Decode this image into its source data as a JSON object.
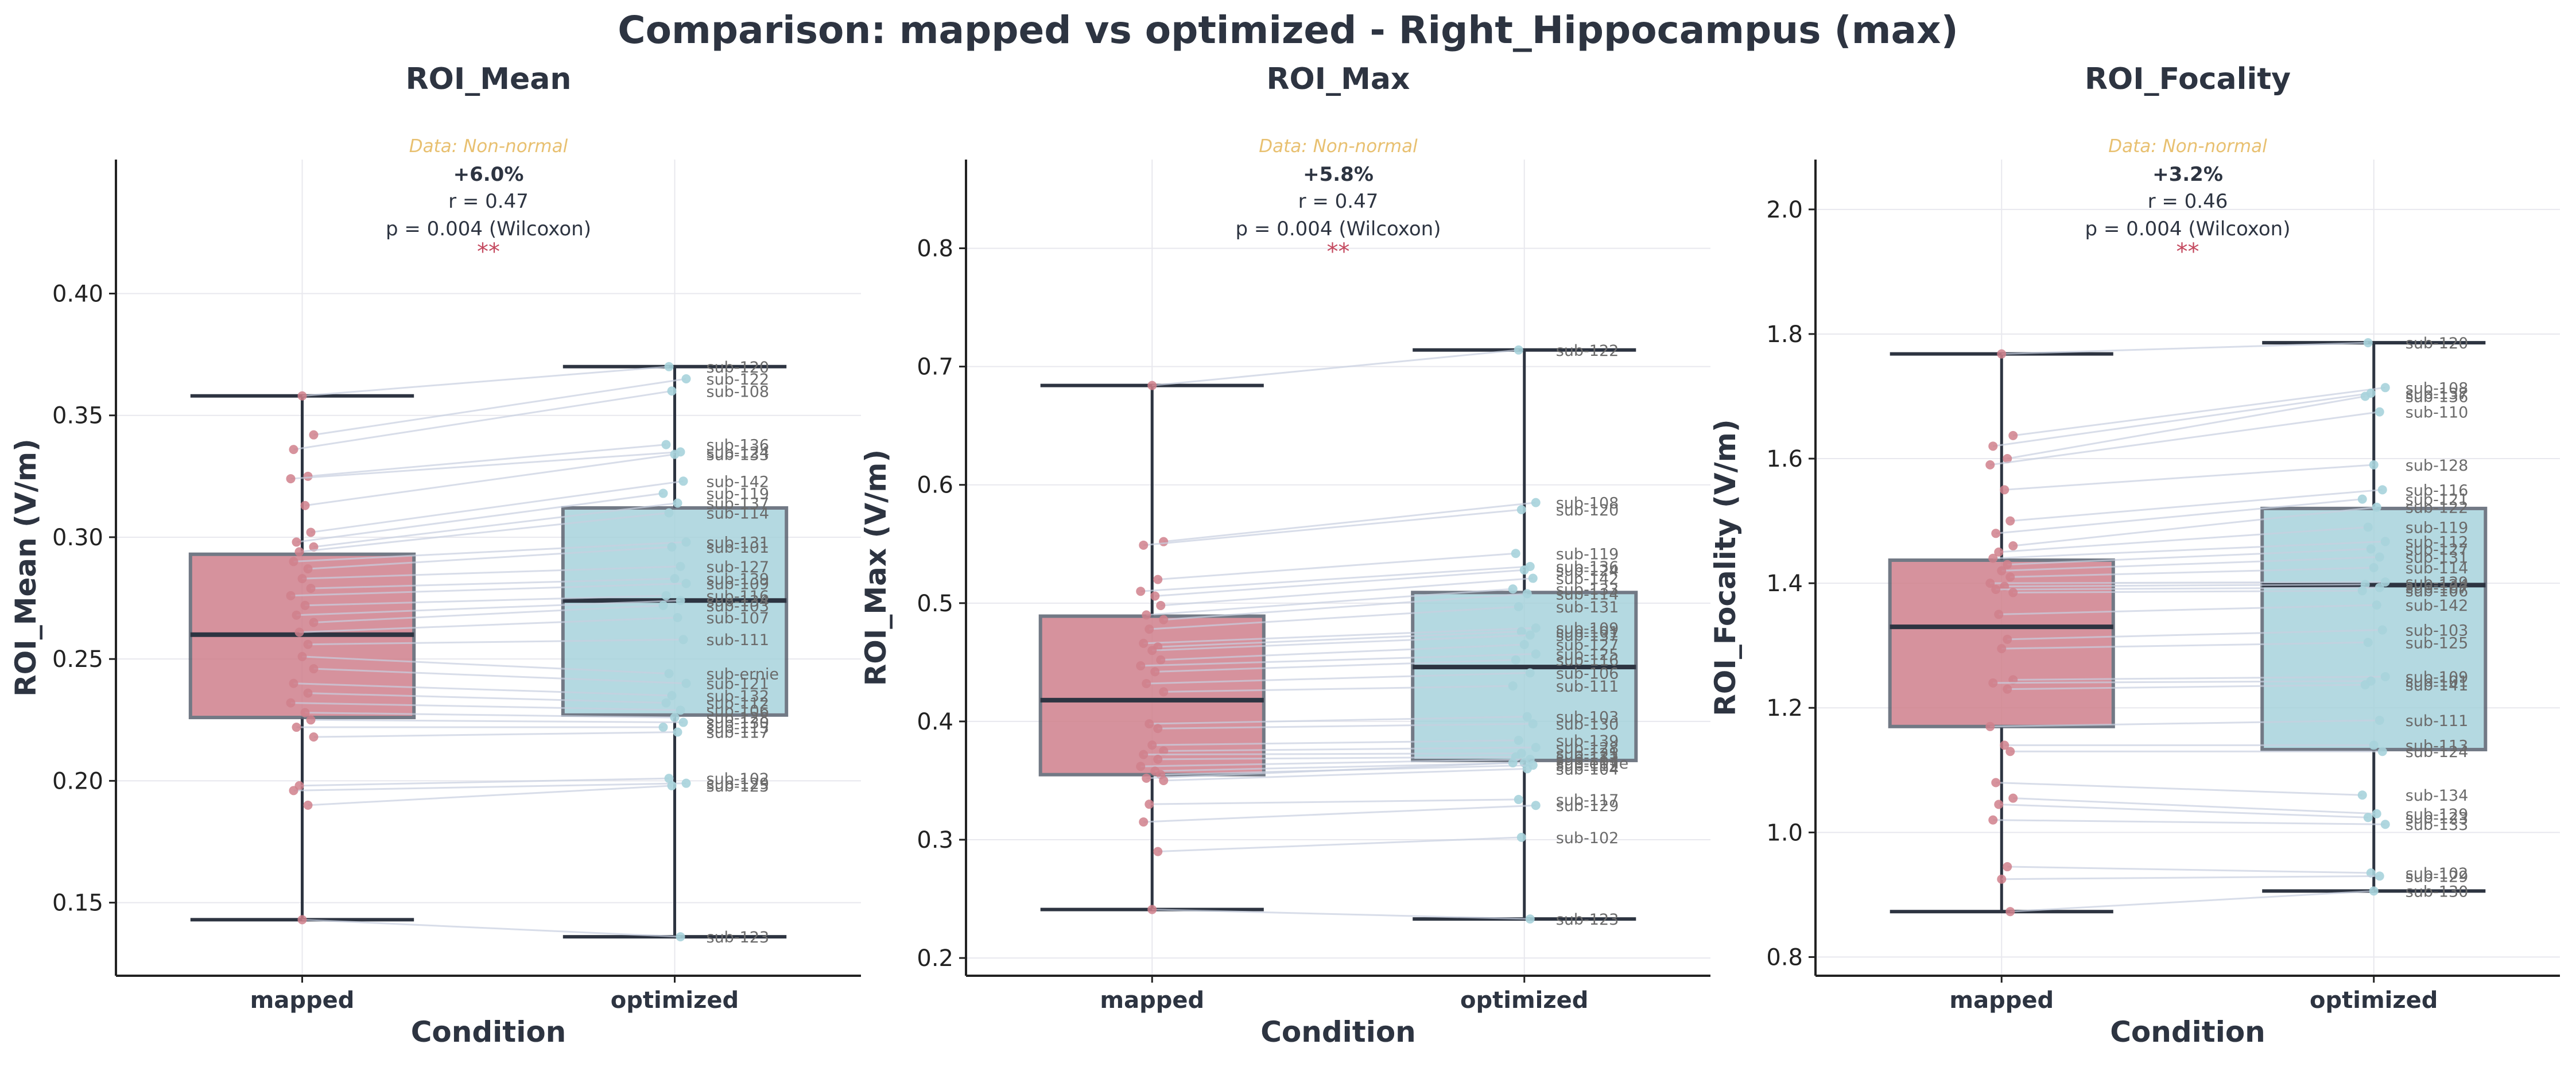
{
  "figure": {
    "title": "Comparison: mapped vs optimized - Right_Hippocampus (max)",
    "colors": {
      "mapped": "#d0808c",
      "optimized": "#a7d3dc",
      "median": "#2d3441",
      "text": "#2d3441",
      "note": "#e8c070",
      "stars": "#c4495f",
      "lines": "#c8d0e0"
    }
  },
  "chart_data": [
    {
      "type": "box",
      "title": "ROI_Mean",
      "xlabel": "Condition",
      "ylabel": "ROI_Mean (V/m)",
      "categories": [
        "mapped",
        "optimized"
      ],
      "ylim": [
        0.12,
        0.455
      ],
      "yticks": [
        0.15,
        0.2,
        0.25,
        0.3,
        0.35,
        0.4
      ],
      "ytick_labels": [
        "0.15",
        "0.20",
        "0.25",
        "0.30",
        "0.35",
        "0.40"
      ],
      "grid": true,
      "annotation": {
        "note": "Data: Non-normal",
        "pct": "+6.0%",
        "r": "r = 0.47",
        "p": "p = 0.004 (Wilcoxon)",
        "stars": "**"
      },
      "boxes": [
        {
          "condition": "mapped",
          "whisker_low": 0.143,
          "q1": 0.226,
          "median": 0.26,
          "q3": 0.293,
          "whisker_high": 0.358
        },
        {
          "condition": "optimized",
          "whisker_low": 0.136,
          "q1": 0.227,
          "median": 0.274,
          "q3": 0.312,
          "whisker_high": 0.37
        }
      ],
      "subjects": [
        {
          "label": "sub-120",
          "mapped": 0.358,
          "optimized": 0.37
        },
        {
          "label": "sub-122",
          "mapped": 0.342,
          "optimized": 0.365
        },
        {
          "label": "sub-108",
          "mapped": 0.336,
          "optimized": 0.36
        },
        {
          "label": "sub-136",
          "mapped": 0.325,
          "optimized": 0.338
        },
        {
          "label": "sub-124",
          "mapped": 0.324,
          "optimized": 0.335
        },
        {
          "label": "sub-133",
          "mapped": 0.313,
          "optimized": 0.334
        },
        {
          "label": "sub-142",
          "mapped": 0.302,
          "optimized": 0.323
        },
        {
          "label": "sub-119",
          "mapped": 0.298,
          "optimized": 0.318
        },
        {
          "label": "sub-137",
          "mapped": 0.296,
          "optimized": 0.314
        },
        {
          "label": "sub-114",
          "mapped": 0.294,
          "optimized": 0.31
        },
        {
          "label": "sub-131",
          "mapped": 0.29,
          "optimized": 0.298
        },
        {
          "label": "sub-101",
          "mapped": 0.287,
          "optimized": 0.296
        },
        {
          "label": "sub-127",
          "mapped": 0.283,
          "optimized": 0.288
        },
        {
          "label": "sub-139",
          "mapped": 0.279,
          "optimized": 0.283
        },
        {
          "label": "sub-109",
          "mapped": 0.276,
          "optimized": 0.281
        },
        {
          "label": "sub-116",
          "mapped": 0.272,
          "optimized": 0.276
        },
        {
          "label": "sub-134",
          "mapped": 0.268,
          "optimized": 0.274
        },
        {
          "label": "sub-103",
          "mapped": 0.265,
          "optimized": 0.272
        },
        {
          "label": "sub-107",
          "mapped": 0.261,
          "optimized": 0.267
        },
        {
          "label": "sub-111",
          "mapped": 0.256,
          "optimized": 0.258
        },
        {
          "label": "sub-ernie",
          "mapped": 0.251,
          "optimized": 0.244
        },
        {
          "label": "sub-121",
          "mapped": 0.246,
          "optimized": 0.24
        },
        {
          "label": "sub-132",
          "mapped": 0.24,
          "optimized": 0.235
        },
        {
          "label": "sub-112",
          "mapped": 0.236,
          "optimized": 0.232
        },
        {
          "label": "sub-106",
          "mapped": 0.232,
          "optimized": 0.229
        },
        {
          "label": "sub-128",
          "mapped": 0.228,
          "optimized": 0.226
        },
        {
          "label": "sub-130",
          "mapped": 0.225,
          "optimized": 0.224
        },
        {
          "label": "sub-113",
          "mapped": 0.222,
          "optimized": 0.222
        },
        {
          "label": "sub-117",
          "mapped": 0.218,
          "optimized": 0.22
        },
        {
          "label": "sub-102",
          "mapped": 0.198,
          "optimized": 0.201
        },
        {
          "label": "sub-129",
          "mapped": 0.196,
          "optimized": 0.199
        },
        {
          "label": "sub-125",
          "mapped": 0.19,
          "optimized": 0.198
        },
        {
          "label": "sub-123",
          "mapped": 0.143,
          "optimized": 0.136
        }
      ]
    },
    {
      "type": "box",
      "title": "ROI_Max",
      "xlabel": "Condition",
      "ylabel": "ROI_Max (V/m)",
      "categories": [
        "mapped",
        "optimized"
      ],
      "ylim": [
        0.185,
        0.875
      ],
      "yticks": [
        0.2,
        0.3,
        0.4,
        0.5,
        0.6,
        0.7,
        0.8
      ],
      "ytick_labels": [
        "0.2",
        "0.3",
        "0.4",
        "0.5",
        "0.6",
        "0.7",
        "0.8"
      ],
      "grid": true,
      "annotation": {
        "note": "Data: Non-normal",
        "pct": "+5.8%",
        "r": "r = 0.47",
        "p": "p = 0.004 (Wilcoxon)",
        "stars": "**"
      },
      "boxes": [
        {
          "condition": "mapped",
          "whisker_low": 0.241,
          "q1": 0.355,
          "median": 0.418,
          "q3": 0.489,
          "whisker_high": 0.684
        },
        {
          "condition": "optimized",
          "whisker_low": 0.233,
          "q1": 0.367,
          "median": 0.446,
          "q3": 0.509,
          "whisker_high": 0.714
        }
      ],
      "subjects": [
        {
          "label": "sub-122",
          "mapped": 0.684,
          "optimized": 0.714
        },
        {
          "label": "sub-108",
          "mapped": 0.552,
          "optimized": 0.585
        },
        {
          "label": "sub-120",
          "mapped": 0.549,
          "optimized": 0.579
        },
        {
          "label": "sub-119",
          "mapped": 0.52,
          "optimized": 0.542
        },
        {
          "label": "sub-136",
          "mapped": 0.51,
          "optimized": 0.531
        },
        {
          "label": "sub-124",
          "mapped": 0.506,
          "optimized": 0.528
        },
        {
          "label": "sub-142",
          "mapped": 0.498,
          "optimized": 0.521
        },
        {
          "label": "sub-133",
          "mapped": 0.49,
          "optimized": 0.512
        },
        {
          "label": "sub-114",
          "mapped": 0.486,
          "optimized": 0.508
        },
        {
          "label": "sub-131",
          "mapped": 0.478,
          "optimized": 0.497
        },
        {
          "label": "sub-109",
          "mapped": 0.466,
          "optimized": 0.479
        },
        {
          "label": "sub-101",
          "mapped": 0.463,
          "optimized": 0.476
        },
        {
          "label": "sub-137",
          "mapped": 0.46,
          "optimized": 0.473
        },
        {
          "label": "sub-127",
          "mapped": 0.452,
          "optimized": 0.465
        },
        {
          "label": "sub-125",
          "mapped": 0.447,
          "optimized": 0.457
        },
        {
          "label": "sub-116",
          "mapped": 0.442,
          "optimized": 0.452
        },
        {
          "label": "sub-106",
          "mapped": 0.432,
          "optimized": 0.441
        },
        {
          "label": "sub-111",
          "mapped": 0.425,
          "optimized": 0.43
        },
        {
          "label": "sub-103",
          "mapped": 0.398,
          "optimized": 0.404
        },
        {
          "label": "sub-130",
          "mapped": 0.394,
          "optimized": 0.398
        },
        {
          "label": "sub-139",
          "mapped": 0.38,
          "optimized": 0.384
        },
        {
          "label": "sub-128",
          "mapped": 0.375,
          "optimized": 0.378
        },
        {
          "label": "sub-121",
          "mapped": 0.372,
          "optimized": 0.373
        },
        {
          "label": "sub-132",
          "mapped": 0.368,
          "optimized": 0.37
        },
        {
          "label": "sub-113",
          "mapped": 0.362,
          "optimized": 0.368
        },
        {
          "label": "sub-107",
          "mapped": 0.358,
          "optimized": 0.365
        },
        {
          "label": "sub-112",
          "mapped": 0.355,
          "optimized": 0.363
        },
        {
          "label": "sub-ernie",
          "mapped": 0.352,
          "optimized": 0.365
        },
        {
          "label": "sub-104",
          "mapped": 0.35,
          "optimized": 0.36
        },
        {
          "label": "sub-117",
          "mapped": 0.33,
          "optimized": 0.334
        },
        {
          "label": "sub-129",
          "mapped": 0.315,
          "optimized": 0.329
        },
        {
          "label": "sub-102",
          "mapped": 0.29,
          "optimized": 0.302
        },
        {
          "label": "sub-123",
          "mapped": 0.241,
          "optimized": 0.233
        }
      ]
    },
    {
      "type": "box",
      "title": "ROI_Focality",
      "xlabel": "Condition",
      "ylabel": "ROI_Focality (V/m)",
      "categories": [
        "mapped",
        "optimized"
      ],
      "ylim": [
        0.77,
        2.08
      ],
      "yticks": [
        0.8,
        1.0,
        1.2,
        1.4,
        1.6,
        1.8,
        2.0
      ],
      "ytick_labels": [
        "0.8",
        "1.0",
        "1.2",
        "1.4",
        "1.6",
        "1.8",
        "2.0"
      ],
      "grid": true,
      "annotation": {
        "note": "Data: Non-normal",
        "pct": "+3.2%",
        "r": "r = 0.46",
        "p": "p = 0.004 (Wilcoxon)",
        "stars": "**"
      },
      "boxes": [
        {
          "condition": "mapped",
          "whisker_low": 0.873,
          "q1": 1.17,
          "median": 1.33,
          "q3": 1.437,
          "whisker_high": 1.768
        },
        {
          "condition": "optimized",
          "whisker_low": 0.906,
          "q1": 1.133,
          "median": 1.397,
          "q3": 1.52,
          "whisker_high": 1.786
        }
      ],
      "subjects": [
        {
          "label": "sub-120",
          "mapped": 1.768,
          "optimized": 1.786
        },
        {
          "label": "sub-108",
          "mapped": 1.637,
          "optimized": 1.714
        },
        {
          "label": "sub-137",
          "mapped": 1.62,
          "optimized": 1.705
        },
        {
          "label": "sub-136",
          "mapped": 1.6,
          "optimized": 1.7
        },
        {
          "label": "sub-110",
          "mapped": 1.59,
          "optimized": 1.675
        },
        {
          "label": "sub-128",
          "mapped": 1.55,
          "optimized": 1.59
        },
        {
          "label": "sub-116",
          "mapped": 1.5,
          "optimized": 1.55
        },
        {
          "label": "sub-121",
          "mapped": 1.48,
          "optimized": 1.535
        },
        {
          "label": "sub-122",
          "mapped": 1.46,
          "optimized": 1.522
        },
        {
          "label": "sub-119",
          "mapped": 1.45,
          "optimized": 1.49
        },
        {
          "label": "sub-112",
          "mapped": 1.44,
          "optimized": 1.467
        },
        {
          "label": "sub-127",
          "mapped": 1.43,
          "optimized": 1.455
        },
        {
          "label": "sub-131",
          "mapped": 1.42,
          "optimized": 1.442
        },
        {
          "label": "sub-114",
          "mapped": 1.41,
          "optimized": 1.425
        },
        {
          "label": "sub-139",
          "mapped": 1.4,
          "optimized": 1.402
        },
        {
          "label": "sub-124",
          "mapped": 1.395,
          "optimized": 1.398
        },
        {
          "label": "sub-107",
          "mapped": 1.39,
          "optimized": 1.393
        },
        {
          "label": "sub-106",
          "mapped": 1.385,
          "optimized": 1.388
        },
        {
          "label": "sub-142",
          "mapped": 1.35,
          "optimized": 1.365
        },
        {
          "label": "sub-103",
          "mapped": 1.31,
          "optimized": 1.325
        },
        {
          "label": "sub-125",
          "mapped": 1.295,
          "optimized": 1.305
        },
        {
          "label": "sub-109",
          "mapped": 1.245,
          "optimized": 1.25
        },
        {
          "label": "sub-101",
          "mapped": 1.24,
          "optimized": 1.243
        },
        {
          "label": "sub-141",
          "mapped": 1.23,
          "optimized": 1.237
        },
        {
          "label": "sub-111",
          "mapped": 1.17,
          "optimized": 1.18
        },
        {
          "label": "sub-113",
          "mapped": 1.14,
          "optimized": 1.14
        },
        {
          "label": "sub-124b",
          "mapped": 1.13,
          "optimized": 1.13
        },
        {
          "label": "sub-134",
          "mapped": 1.08,
          "optimized": 1.06
        },
        {
          "label": "sub-129",
          "mapped": 1.055,
          "optimized": 1.03
        },
        {
          "label": "sub-123",
          "mapped": 1.045,
          "optimized": 1.024
        },
        {
          "label": "sub-133",
          "mapped": 1.02,
          "optimized": 1.013
        },
        {
          "label": "sub-102",
          "mapped": 0.945,
          "optimized": 0.935
        },
        {
          "label": "sub-129b",
          "mapped": 0.925,
          "optimized": 0.93
        },
        {
          "label": "sub-130",
          "mapped": 0.873,
          "optimized": 0.906
        }
      ]
    }
  ]
}
